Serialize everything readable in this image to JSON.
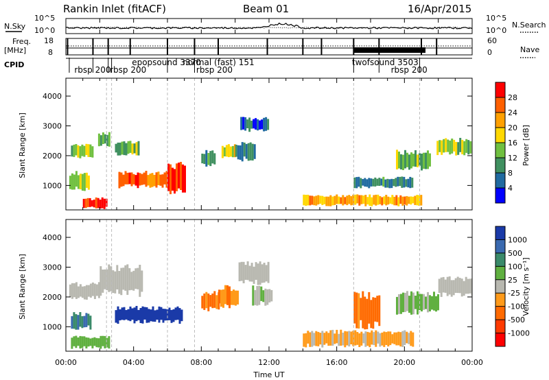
{
  "header": {
    "station": "Rankin Inlet (fitACF)",
    "beam": "Beam 01",
    "date": "16/Apr/2015"
  },
  "noise_panel": {
    "left_label": "N.Sky",
    "right_label": "N.Search",
    "left_ticks": [
      "10^5",
      "10^0"
    ],
    "right_ticks": [
      "10^5",
      "10^0"
    ]
  },
  "freq_panel": {
    "left_label_1": "Freq.",
    "left_label_2": "[MHz]",
    "left_ticks": [
      "18",
      "8"
    ],
    "right_label": "Nave",
    "right_ticks": [
      "60",
      "0"
    ]
  },
  "cpid": {
    "label": "CPID",
    "upper_names": [
      {
        "text": "epopsound 3370",
        "hour": 3.9
      },
      {
        "text": "normal (fast) 151",
        "hour": 6.9
      },
      {
        "text": "twofsound 3503",
        "hour": 16.9
      }
    ],
    "lower_names": [
      {
        "text": "rbsp 200",
        "hour": 0.5
      },
      {
        "text": "rbsp 200",
        "hour": 2.6
      },
      {
        "text": "rbsp 200",
        "hour": 7.7
      },
      {
        "text": "rbsp 200",
        "hour": 19.2
      }
    ]
  },
  "power_panel": {
    "ylabel": "Slant Range [km]",
    "cbar_label": "Power [dB]",
    "cbar_ticks": [
      "28",
      "24",
      "20",
      "16",
      "12",
      "8",
      "4"
    ],
    "cbar_colors": [
      "#ff0000",
      "#ff6000",
      "#ffa000",
      "#ffd800",
      "#70c040",
      "#409060",
      "#206aa0",
      "#0000ff"
    ]
  },
  "velocity_panel": {
    "ylabel": "Slant Range [km]",
    "cbar_label": "Velocity [m s⁻¹]",
    "cbar_ticks": [
      "1000",
      "500",
      "100",
      "25",
      "-25",
      "-100",
      "-500",
      "-1000"
    ],
    "cbar_colors": [
      "#1a3aa8",
      "#3a6ab0",
      "#3a8a6a",
      "#60b040",
      "#b8b8b0",
      "#ff9a1a",
      "#ff6a00",
      "#ff3a00",
      "#ff0000"
    ]
  },
  "time_axis": {
    "label": "Time UT",
    "tick_labels": [
      "00:00",
      "04:00",
      "08:00",
      "12:00",
      "16:00",
      "20:00",
      "00:00"
    ]
  },
  "chart_data": [
    {
      "type": "heatmap",
      "title": "Power",
      "xlabel": "Time UT",
      "ylabel": "Slant Range [km]",
      "xlim": [
        0,
        24
      ],
      "ylim": [
        180,
        4600
      ],
      "yticks": [
        1000,
        2000,
        3000,
        4000
      ],
      "colorbar": {
        "label": "Power [dB]",
        "range": [
          0,
          30
        ]
      },
      "regions": [
        {
          "t0": 0.3,
          "t1": 1.6,
          "r0": 1900,
          "r1": 2400,
          "value": 14
        },
        {
          "t0": 0.2,
          "t1": 1.3,
          "r0": 800,
          "r1": 1500,
          "value": 16
        },
        {
          "t0": 1.0,
          "t1": 2.4,
          "r0": 200,
          "r1": 600,
          "value": 26
        },
        {
          "t0": 1.9,
          "t1": 2.6,
          "r0": 2300,
          "r1": 2800,
          "value": 12
        },
        {
          "t0": 2.9,
          "t1": 4.3,
          "r0": 2000,
          "r1": 2500,
          "value": 12
        },
        {
          "t0": 3.1,
          "t1": 6.0,
          "r0": 900,
          "r1": 1500,
          "value": 24
        },
        {
          "t0": 6.0,
          "t1": 7.0,
          "r0": 700,
          "r1": 1800,
          "value": 28
        },
        {
          "t0": 8.0,
          "t1": 8.8,
          "r0": 1600,
          "r1": 2200,
          "value": 10
        },
        {
          "t0": 9.2,
          "t1": 10.0,
          "r0": 1900,
          "r1": 2400,
          "value": 16
        },
        {
          "t0": 10.0,
          "t1": 11.1,
          "r0": 1800,
          "r1": 2500,
          "value": 8
        },
        {
          "t0": 10.3,
          "t1": 11.9,
          "r0": 2800,
          "r1": 3300,
          "value": 6
        },
        {
          "t0": 14.0,
          "t1": 21.0,
          "r0": 300,
          "r1": 700,
          "value": 20
        },
        {
          "t0": 17.0,
          "t1": 20.5,
          "r0": 900,
          "r1": 1300,
          "value": 8
        },
        {
          "t0": 19.5,
          "t1": 21.5,
          "r0": 1500,
          "r1": 2200,
          "value": 12
        },
        {
          "t0": 21.9,
          "t1": 23.9,
          "r0": 2000,
          "r1": 2600,
          "value": 14
        }
      ]
    },
    {
      "type": "heatmap",
      "title": "Velocity",
      "xlabel": "Time UT",
      "ylabel": "Slant Range [km]",
      "xlim": [
        0,
        24
      ],
      "ylim": [
        180,
        4600
      ],
      "yticks": [
        1000,
        2000,
        3000,
        4000
      ],
      "colorbar": {
        "label": "Velocity [m s⁻¹]",
        "range": [
          -1000,
          1000
        ]
      },
      "regions": [
        {
          "t0": 0.2,
          "t1": 2.0,
          "r0": 1900,
          "r1": 2500,
          "value": 0
        },
        {
          "t0": 2.0,
          "t1": 4.5,
          "r0": 2000,
          "r1": 3100,
          "value": 0
        },
        {
          "t0": 0.3,
          "t1": 1.4,
          "r0": 900,
          "r1": 1500,
          "value": 500
        },
        {
          "t0": 2.9,
          "t1": 6.8,
          "r0": 1100,
          "r1": 1700,
          "value": 1000
        },
        {
          "t0": 0.3,
          "t1": 2.5,
          "r0": 250,
          "r1": 700,
          "value": 200
        },
        {
          "t0": 8.0,
          "t1": 9.0,
          "r0": 1500,
          "r1": 2200,
          "value": -400
        },
        {
          "t0": 9.0,
          "t1": 10.2,
          "r0": 1600,
          "r1": 2400,
          "value": -300
        },
        {
          "t0": 10.2,
          "t1": 12.0,
          "r0": 2400,
          "r1": 3200,
          "value": 0
        },
        {
          "t0": 11.0,
          "t1": 12.2,
          "r0": 1700,
          "r1": 2400,
          "value": 50
        },
        {
          "t0": 14.0,
          "t1": 20.5,
          "r0": 300,
          "r1": 900,
          "value": -150
        },
        {
          "t0": 17.0,
          "t1": 18.5,
          "r0": 900,
          "r1": 2200,
          "value": -400
        },
        {
          "t0": 19.5,
          "t1": 22.0,
          "r0": 1400,
          "r1": 2200,
          "value": 150
        },
        {
          "t0": 22.0,
          "t1": 24.0,
          "r0": 2000,
          "r1": 2700,
          "value": 0
        }
      ]
    }
  ]
}
